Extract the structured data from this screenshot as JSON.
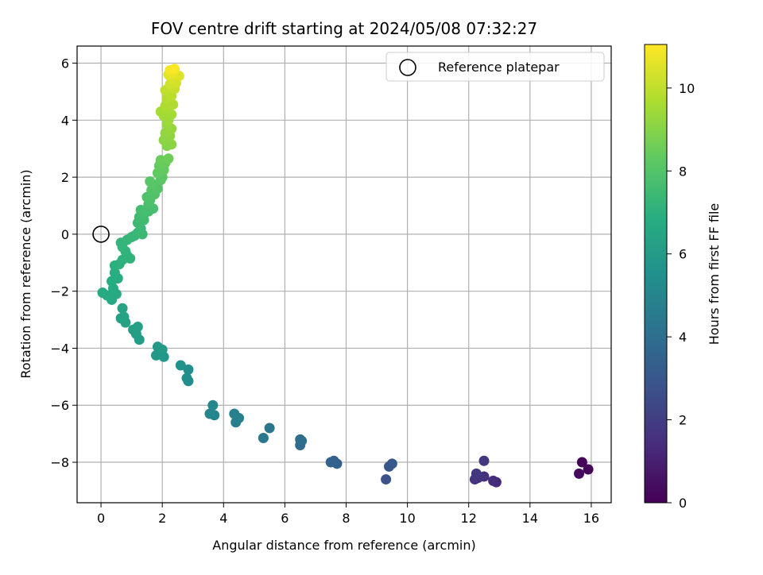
{
  "chart_data": {
    "type": "scatter",
    "title": "FOV centre drift starting at 2024/05/08 07:32:27",
    "xlabel": "Angular distance from reference (arcmin)",
    "ylabel": "Rotation from reference (arcmin)",
    "xlim": [
      -0.78,
      16.65
    ],
    "ylim": [
      -9.42,
      6.6
    ],
    "xticks": [
      "0",
      "2",
      "4",
      "6",
      "8",
      "10",
      "12",
      "14",
      "16"
    ],
    "yticks": [
      "−8",
      "−6",
      "−4",
      "−2",
      "0",
      "2",
      "4",
      "6"
    ],
    "grid": true,
    "legend": {
      "placement": "top-right",
      "entries": [
        "Reference platepar"
      ]
    },
    "reference_point": {
      "x": 0,
      "y": 0
    },
    "colorbar": {
      "label": "Hours from first FF file",
      "range": [
        0,
        11.05
      ],
      "ticks": [
        "0",
        "2",
        "4",
        "6",
        "8",
        "10"
      ],
      "colormap": "viridis"
    },
    "points": [
      {
        "x": 15.7,
        "y": -8.0,
        "h": 0.1
      },
      {
        "x": 15.9,
        "y": -8.25,
        "h": 0.2
      },
      {
        "x": 15.6,
        "y": -8.4,
        "h": 0.3
      },
      {
        "x": 12.9,
        "y": -8.7,
        "h": 1.3
      },
      {
        "x": 12.8,
        "y": -8.65,
        "h": 1.4
      },
      {
        "x": 12.5,
        "y": -8.5,
        "h": 1.5
      },
      {
        "x": 12.3,
        "y": -8.55,
        "h": 1.6
      },
      {
        "x": 12.2,
        "y": -8.6,
        "h": 1.65
      },
      {
        "x": 12.5,
        "y": -7.95,
        "h": 1.75
      },
      {
        "x": 12.25,
        "y": -8.4,
        "h": 1.8
      },
      {
        "x": 9.3,
        "y": -8.6,
        "h": 2.8
      },
      {
        "x": 9.4,
        "y": -8.15,
        "h": 2.9
      },
      {
        "x": 9.5,
        "y": -8.05,
        "h": 3.0
      },
      {
        "x": 7.7,
        "y": -8.05,
        "h": 3.4
      },
      {
        "x": 7.6,
        "y": -7.95,
        "h": 3.45
      },
      {
        "x": 7.5,
        "y": -8.0,
        "h": 3.5
      },
      {
        "x": 6.5,
        "y": -7.4,
        "h": 3.9
      },
      {
        "x": 6.55,
        "y": -7.25,
        "h": 3.95
      },
      {
        "x": 6.5,
        "y": -7.2,
        "h": 4.0
      },
      {
        "x": 5.5,
        "y": -6.8,
        "h": 4.3
      },
      {
        "x": 5.3,
        "y": -7.15,
        "h": 4.4
      },
      {
        "x": 4.4,
        "y": -6.6,
        "h": 4.7
      },
      {
        "x": 4.5,
        "y": -6.45,
        "h": 4.75
      },
      {
        "x": 4.35,
        "y": -6.3,
        "h": 4.8
      },
      {
        "x": 3.7,
        "y": -6.35,
        "h": 5.0
      },
      {
        "x": 3.55,
        "y": -6.3,
        "h": 5.05
      },
      {
        "x": 3.65,
        "y": -6.0,
        "h": 5.1
      },
      {
        "x": 2.85,
        "y": -5.15,
        "h": 5.4
      },
      {
        "x": 2.8,
        "y": -5.05,
        "h": 5.45
      },
      {
        "x": 2.85,
        "y": -4.75,
        "h": 5.5
      },
      {
        "x": 2.6,
        "y": -4.6,
        "h": 5.55
      },
      {
        "x": 2.05,
        "y": -4.3,
        "h": 5.8
      },
      {
        "x": 1.8,
        "y": -4.25,
        "h": 5.85
      },
      {
        "x": 1.85,
        "y": -3.95,
        "h": 5.9
      },
      {
        "x": 2.0,
        "y": -4.05,
        "h": 5.95
      },
      {
        "x": 1.25,
        "y": -3.7,
        "h": 6.1
      },
      {
        "x": 1.15,
        "y": -3.5,
        "h": 6.15
      },
      {
        "x": 1.05,
        "y": -3.35,
        "h": 6.2
      },
      {
        "x": 1.2,
        "y": -3.25,
        "h": 6.25
      },
      {
        "x": 0.8,
        "y": -3.1,
        "h": 6.3
      },
      {
        "x": 0.65,
        "y": -2.95,
        "h": 6.35
      },
      {
        "x": 0.75,
        "y": -2.9,
        "h": 6.4
      },
      {
        "x": 0.7,
        "y": -2.6,
        "h": 6.45
      },
      {
        "x": 0.35,
        "y": -2.3,
        "h": 6.6
      },
      {
        "x": 0.2,
        "y": -2.15,
        "h": 6.65
      },
      {
        "x": 0.05,
        "y": -2.05,
        "h": 6.7
      },
      {
        "x": 0.5,
        "y": -2.1,
        "h": 6.72
      },
      {
        "x": 0.4,
        "y": -1.9,
        "h": 6.75
      },
      {
        "x": 0.35,
        "y": -1.65,
        "h": 6.8
      },
      {
        "x": 0.55,
        "y": -1.55,
        "h": 6.85
      },
      {
        "x": 0.45,
        "y": -1.35,
        "h": 6.9
      },
      {
        "x": 0.45,
        "y": -1.1,
        "h": 6.95
      },
      {
        "x": 0.6,
        "y": -1.05,
        "h": 7.0
      },
      {
        "x": 0.7,
        "y": -0.9,
        "h": 7.05
      },
      {
        "x": 0.85,
        "y": -0.75,
        "h": 7.1
      },
      {
        "x": 0.95,
        "y": -0.85,
        "h": 7.12
      },
      {
        "x": 0.8,
        "y": -0.6,
        "h": 7.15
      },
      {
        "x": 0.7,
        "y": -0.45,
        "h": 7.2
      },
      {
        "x": 0.65,
        "y": -0.3,
        "h": 7.22
      },
      {
        "x": 0.85,
        "y": -0.2,
        "h": 7.25
      },
      {
        "x": 1.0,
        "y": -0.1,
        "h": 7.3
      },
      {
        "x": 1.1,
        "y": -0.05,
        "h": 7.32
      },
      {
        "x": 1.2,
        "y": 0.05,
        "h": 7.35
      },
      {
        "x": 1.35,
        "y": 0.0,
        "h": 7.38
      },
      {
        "x": 1.3,
        "y": 0.2,
        "h": 7.4
      },
      {
        "x": 1.2,
        "y": 0.4,
        "h": 7.45
      },
      {
        "x": 1.4,
        "y": 0.5,
        "h": 7.5
      },
      {
        "x": 1.25,
        "y": 0.6,
        "h": 7.55
      },
      {
        "x": 1.4,
        "y": 0.7,
        "h": 7.6
      },
      {
        "x": 1.3,
        "y": 0.85,
        "h": 7.65
      },
      {
        "x": 1.55,
        "y": 0.8,
        "h": 7.7
      },
      {
        "x": 1.7,
        "y": 0.9,
        "h": 7.75
      },
      {
        "x": 1.55,
        "y": 1.05,
        "h": 7.8
      },
      {
        "x": 1.6,
        "y": 1.2,
        "h": 7.85
      },
      {
        "x": 1.5,
        "y": 1.3,
        "h": 7.9
      },
      {
        "x": 1.75,
        "y": 1.4,
        "h": 7.95
      },
      {
        "x": 1.65,
        "y": 1.55,
        "h": 8.0
      },
      {
        "x": 1.85,
        "y": 1.6,
        "h": 8.05
      },
      {
        "x": 1.7,
        "y": 1.75,
        "h": 8.1
      },
      {
        "x": 1.6,
        "y": 1.85,
        "h": 8.12
      },
      {
        "x": 1.95,
        "y": 1.9,
        "h": 8.15
      },
      {
        "x": 2.0,
        "y": 2.0,
        "h": 8.2
      },
      {
        "x": 1.85,
        "y": 2.15,
        "h": 8.3
      },
      {
        "x": 2.05,
        "y": 2.25,
        "h": 8.35
      },
      {
        "x": 1.9,
        "y": 2.4,
        "h": 8.4
      },
      {
        "x": 2.1,
        "y": 2.5,
        "h": 8.45
      },
      {
        "x": 1.95,
        "y": 2.6,
        "h": 8.5
      },
      {
        "x": 2.2,
        "y": 2.65,
        "h": 8.55
      },
      {
        "x": 2.15,
        "y": 3.1,
        "h": 9.0
      },
      {
        "x": 2.3,
        "y": 3.15,
        "h": 9.05
      },
      {
        "x": 2.05,
        "y": 3.3,
        "h": 9.1
      },
      {
        "x": 2.25,
        "y": 3.45,
        "h": 9.15
      },
      {
        "x": 2.1,
        "y": 3.55,
        "h": 9.2
      },
      {
        "x": 2.3,
        "y": 3.7,
        "h": 9.25
      },
      {
        "x": 2.15,
        "y": 3.85,
        "h": 9.3
      },
      {
        "x": 2.2,
        "y": 4.0,
        "h": 9.4
      },
      {
        "x": 2.05,
        "y": 4.15,
        "h": 9.45
      },
      {
        "x": 2.3,
        "y": 4.2,
        "h": 9.5
      },
      {
        "x": 1.95,
        "y": 4.3,
        "h": 9.55
      },
      {
        "x": 2.2,
        "y": 4.4,
        "h": 9.6
      },
      {
        "x": 2.1,
        "y": 4.5,
        "h": 9.65
      },
      {
        "x": 2.35,
        "y": 4.55,
        "h": 9.7
      },
      {
        "x": 2.15,
        "y": 4.75,
        "h": 9.8
      },
      {
        "x": 2.3,
        "y": 4.85,
        "h": 9.9
      },
      {
        "x": 2.1,
        "y": 5.05,
        "h": 10.0
      },
      {
        "x": 2.4,
        "y": 5.1,
        "h": 10.1
      },
      {
        "x": 2.25,
        "y": 5.25,
        "h": 10.2
      },
      {
        "x": 2.45,
        "y": 5.3,
        "h": 10.3
      },
      {
        "x": 2.3,
        "y": 5.45,
        "h": 10.4
      },
      {
        "x": 2.55,
        "y": 5.55,
        "h": 10.5
      },
      {
        "x": 2.2,
        "y": 5.6,
        "h": 10.6
      },
      {
        "x": 2.35,
        "y": 5.65,
        "h": 10.7
      },
      {
        "x": 2.25,
        "y": 5.75,
        "h": 10.85
      },
      {
        "x": 2.4,
        "y": 5.8,
        "h": 11.0
      }
    ]
  }
}
